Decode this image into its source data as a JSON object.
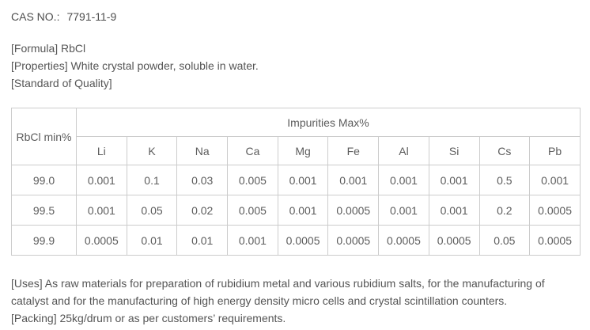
{
  "page": {
    "cas_label": "CAS NO.:",
    "cas_value": "7791-11-9",
    "formula_line": "[Formula] RbCl",
    "properties_line": "[Properties] White crystal powder, soluble in water.",
    "standard_line": "[Standard of Quality]",
    "uses_lines": [
      "[Uses] As raw materials for preparation of rubidium metal and various rubidium salts, for the manufacturing of",
      "catalyst and for the manufacturing of high energy density micro cells and crystal scintillation counters."
    ],
    "packing_line": "[Packing] 25kg/drum or as per customers’ requirements."
  },
  "table": {
    "row_header": "RbCl min%",
    "group_header": "Impurities Max%",
    "columns": [
      "Li",
      "K",
      "Na",
      "Ca",
      "Mg",
      "Fe",
      "Al",
      "Si",
      "Cs",
      "Pb"
    ],
    "rows": [
      {
        "rbcl": "99.0",
        "values": [
          "0.001",
          "0.1",
          "0.03",
          "0.005",
          "0.001",
          "0.001",
          "0.001",
          "0.001",
          "0.5",
          "0.001"
        ]
      },
      {
        "rbcl": "99.5",
        "values": [
          "0.001",
          "0.05",
          "0.02",
          "0.005",
          "0.001",
          "0.0005",
          "0.001",
          "0.001",
          "0.2",
          "0.0005"
        ]
      },
      {
        "rbcl": "99.9",
        "values": [
          "0.0005",
          "0.01",
          "0.01",
          "0.001",
          "0.0005",
          "0.0005",
          "0.0005",
          "0.0005",
          "0.05",
          "0.0005"
        ]
      }
    ]
  },
  "colors": {
    "text": "#555555",
    "border": "#cccccc",
    "background": "#ffffff"
  }
}
